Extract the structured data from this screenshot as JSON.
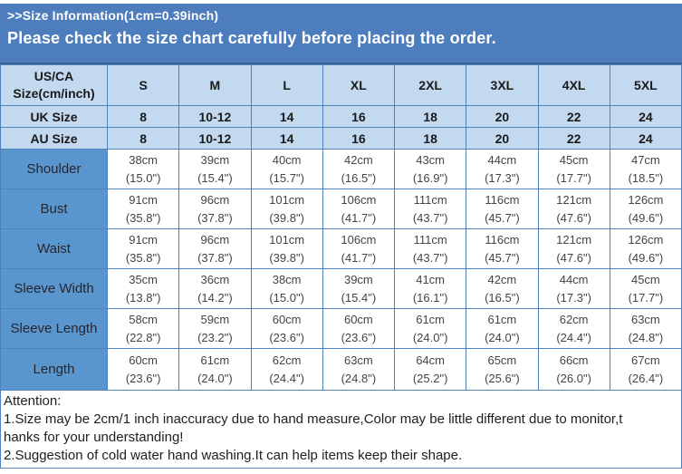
{
  "banner": {
    "line1": ">>Size Information(1cm=0.39inch)",
    "line2": "Please check the size chart carefully before placing the order."
  },
  "table": {
    "corner": {
      "line1": "US/CA",
      "line2": "Size(cm/inch)"
    },
    "size_columns": [
      "S",
      "M",
      "L",
      "XL",
      "2XL",
      "3XL",
      "4XL",
      "5XL"
    ],
    "size_rows": [
      {
        "label": "UK Size",
        "values": [
          "8",
          "10-12",
          "14",
          "16",
          "18",
          "20",
          "22",
          "24"
        ]
      },
      {
        "label": "AU Size",
        "values": [
          "8",
          "10-12",
          "14",
          "16",
          "18",
          "20",
          "22",
          "24"
        ]
      }
    ],
    "measurement_rows": [
      {
        "label": "Shoulder",
        "cm": [
          "38cm",
          "39cm",
          "40cm",
          "42cm",
          "43cm",
          "44cm",
          "45cm",
          "47cm"
        ],
        "inch": [
          "(15.0\")",
          "(15.4\")",
          "(15.7\")",
          "(16.5\")",
          "(16.9\")",
          "(17.3\")",
          "(17.7\")",
          "(18.5\")"
        ]
      },
      {
        "label": "Bust",
        "cm": [
          "91cm",
          "96cm",
          "101cm",
          "106cm",
          "111cm",
          "116cm",
          "121cm",
          "126cm"
        ],
        "inch": [
          "(35.8\")",
          "(37.8\")",
          "(39.8\")",
          "(41.7\")",
          "(43.7\")",
          "(45.7\")",
          "(47.6\")",
          "(49.6\")"
        ]
      },
      {
        "label": "Waist",
        "cm": [
          "91cm",
          "96cm",
          "101cm",
          "106cm",
          "111cm",
          "116cm",
          "121cm",
          "126cm"
        ],
        "inch": [
          "(35.8\")",
          "(37.8\")",
          "(39.8\")",
          "(41.7\")",
          "(43.7\")",
          "(45.7\")",
          "(47.6\")",
          "(49.6\")"
        ]
      },
      {
        "label": "Sleeve Width",
        "cm": [
          "35cm",
          "36cm",
          "38cm",
          "39cm",
          "41cm",
          "42cm",
          "44cm",
          "45cm"
        ],
        "inch": [
          "(13.8\")",
          "(14.2\")",
          "(15.0\")",
          "(15.4\")",
          "(16.1\")",
          "(16.5\")",
          "(17.3\")",
          "(17.7\")"
        ]
      },
      {
        "label": "Sleeve Length",
        "cm": [
          "58cm",
          "59cm",
          "60cm",
          "60cm",
          "61cm",
          "61cm",
          "62cm",
          "63cm"
        ],
        "inch": [
          "(22.8\")",
          "(23.2\")",
          "(23.6\")",
          "(23.6\")",
          "(24.0\")",
          "(24.0\")",
          "(24.4\")",
          "(24.8\")"
        ]
      },
      {
        "label": "Length",
        "cm": [
          "60cm",
          "61cm",
          "62cm",
          "63cm",
          "64cm",
          "65cm",
          "66cm",
          "67cm"
        ],
        "inch": [
          "(23.6\")",
          "(24.0\")",
          "(24.4\")",
          "(24.8\")",
          "(25.2\")",
          "(25.6\")",
          "(26.0\")",
          "(26.4\")"
        ]
      }
    ]
  },
  "attention": {
    "lines": [
      "Attention:",
      "1.Size may be 2cm/1 inch inaccuracy due to hand measure,Color may be little different due to monitor,t",
      "hanks for your understanding!",
      "2.Suggestion of cold water hand washing.It can help items keep their shape."
    ]
  },
  "colors": {
    "banner_bg": "#4d7dbc",
    "banner_border": "#3a6494",
    "banner_text": "#ffffff",
    "header_bg": "#c3d9f0",
    "label_bg": "#5a96ce",
    "grid_border": "#4f81bd",
    "data_text": "#444444"
  }
}
